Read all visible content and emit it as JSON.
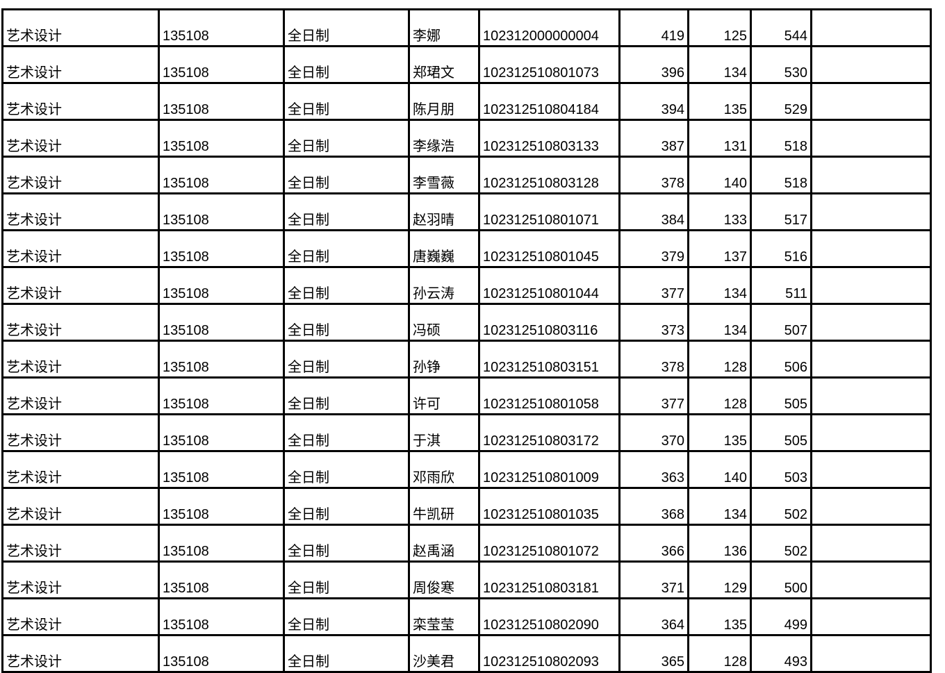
{
  "colors": {
    "background": "#ffffff",
    "grid_border": "#000000",
    "text": "#000000"
  },
  "table": {
    "rows": [
      [
        "艺术设计",
        "135108",
        "全日制",
        "李娜",
        "102312000000004",
        "419",
        "125",
        "544",
        ""
      ],
      [
        "艺术设计",
        "135108",
        "全日制",
        "郑珺文",
        "102312510801073",
        "396",
        "134",
        "530",
        ""
      ],
      [
        "艺术设计",
        "135108",
        "全日制",
        "陈月朋",
        "102312510804184",
        "394",
        "135",
        "529",
        ""
      ],
      [
        "艺术设计",
        "135108",
        "全日制",
        "李缘浩",
        "102312510803133",
        "387",
        "131",
        "518",
        ""
      ],
      [
        "艺术设计",
        "135108",
        "全日制",
        "李雪薇",
        "102312510803128",
        "378",
        "140",
        "518",
        ""
      ],
      [
        "艺术设计",
        "135108",
        "全日制",
        "赵羽晴",
        "102312510801071",
        "384",
        "133",
        "517",
        ""
      ],
      [
        "艺术设计",
        "135108",
        "全日制",
        "唐巍巍",
        "102312510801045",
        "379",
        "137",
        "516",
        ""
      ],
      [
        "艺术设计",
        "135108",
        "全日制",
        "孙云涛",
        "102312510801044",
        "377",
        "134",
        "511",
        ""
      ],
      [
        "艺术设计",
        "135108",
        "全日制",
        "冯硕",
        "102312510803116",
        "373",
        "134",
        "507",
        ""
      ],
      [
        "艺术设计",
        "135108",
        "全日制",
        "孙铮",
        "102312510803151",
        "378",
        "128",
        "506",
        ""
      ],
      [
        "艺术设计",
        "135108",
        "全日制",
        "许可",
        "102312510801058",
        "377",
        "128",
        "505",
        ""
      ],
      [
        "艺术设计",
        "135108",
        "全日制",
        "于淇",
        "102312510803172",
        "370",
        "135",
        "505",
        ""
      ],
      [
        "艺术设计",
        "135108",
        "全日制",
        "邓雨欣",
        "102312510801009",
        "363",
        "140",
        "503",
        ""
      ],
      [
        "艺术设计",
        "135108",
        "全日制",
        "牛凯研",
        "102312510801035",
        "368",
        "134",
        "502",
        ""
      ],
      [
        "艺术设计",
        "135108",
        "全日制",
        "赵禹涵",
        "102312510801072",
        "366",
        "136",
        "502",
        ""
      ],
      [
        "艺术设计",
        "135108",
        "全日制",
        "周俊寒",
        "102312510803181",
        "371",
        "129",
        "500",
        ""
      ],
      [
        "艺术设计",
        "135108",
        "全日制",
        "栾莹莹",
        "102312510802090",
        "364",
        "135",
        "499",
        ""
      ],
      [
        "艺术设计",
        "135108",
        "全日制",
        "沙美君",
        "102312510802093",
        "365",
        "128",
        "493",
        ""
      ]
    ]
  }
}
